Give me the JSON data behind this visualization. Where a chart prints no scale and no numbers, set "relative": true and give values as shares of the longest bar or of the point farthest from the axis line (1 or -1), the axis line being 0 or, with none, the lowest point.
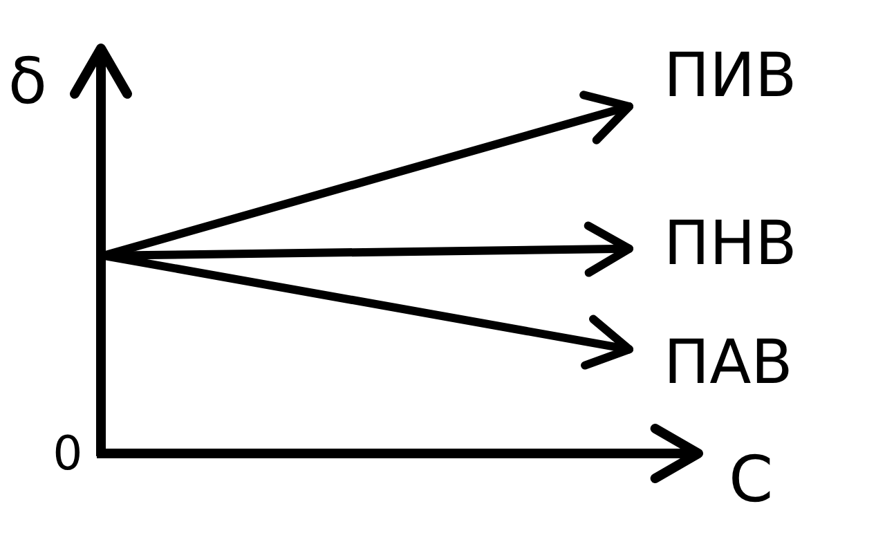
{
  "chart_data": {
    "type": "line",
    "relative": true,
    "xlabel": "C",
    "ylabel": "δ",
    "annotations": [
      "0"
    ],
    "legend": "right",
    "categories": [
      null,
      null
    ],
    "series": [
      {
        "name": "ПИВ",
        "color": "#000000",
        "values": [
          0.57,
          1
        ]
      },
      {
        "name": "ПНВ",
        "color": "#000000",
        "values": [
          0.57,
          0.59
        ]
      },
      {
        "name": "ПАВ",
        "color": "#000000",
        "values": [
          0.57,
          0.3
        ]
      }
    ]
  }
}
